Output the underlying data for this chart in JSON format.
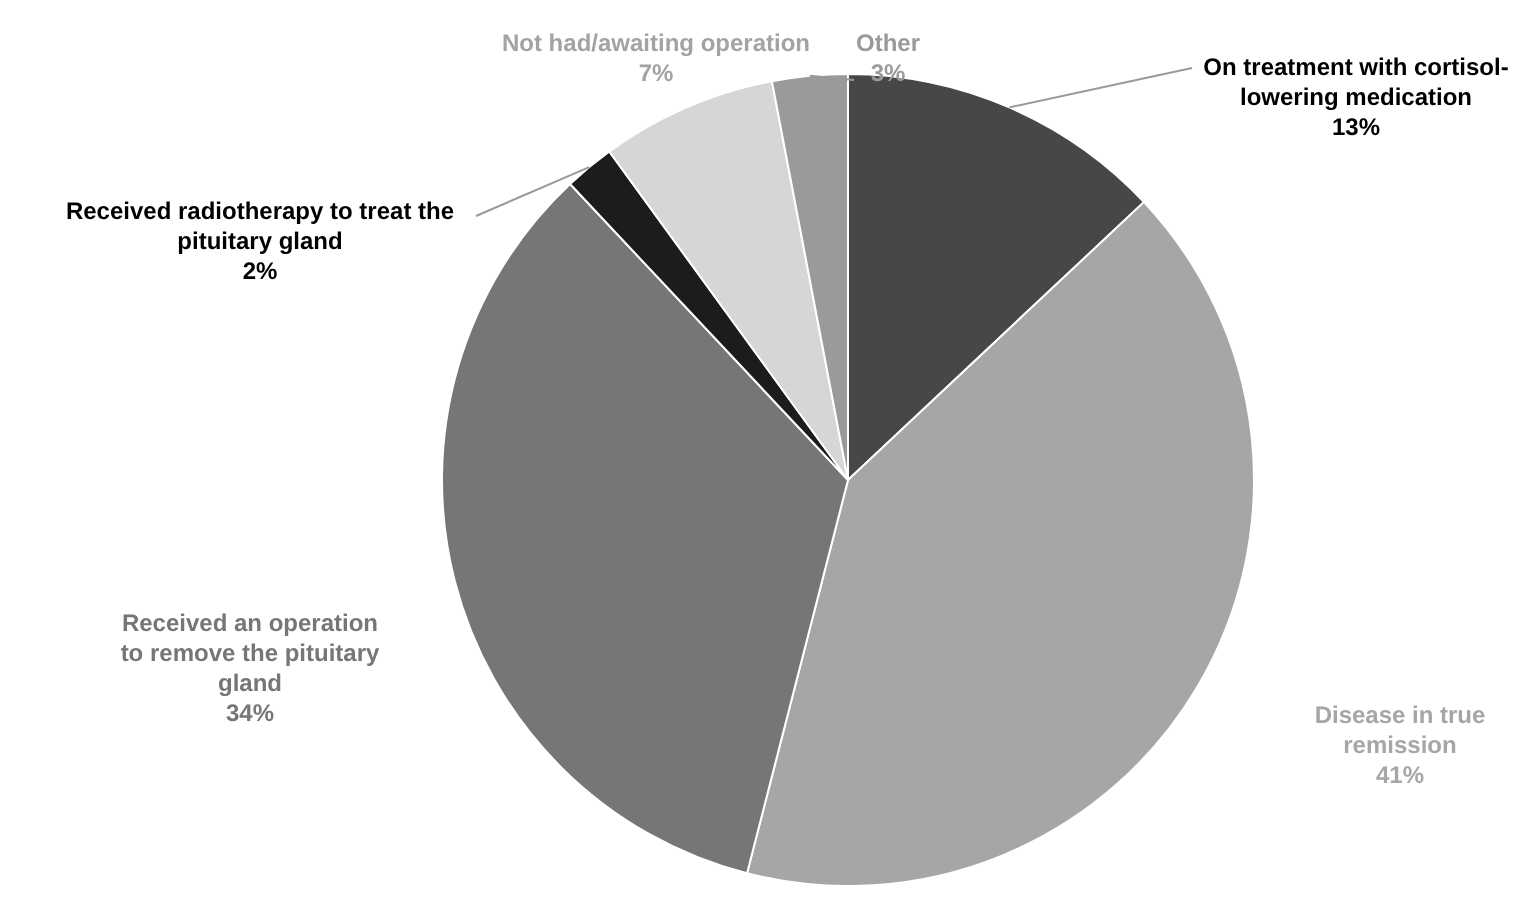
{
  "chart_data": {
    "type": "pie",
    "categories": [
      "On treatment with cortisol-lowering medication",
      "Disease in true remission",
      "Received an operation to remove the pituitary gland",
      "Received radiotherapy to treat the pituitary gland",
      "Not had/awaiting operation",
      "Other"
    ],
    "values": [
      13,
      41,
      34,
      2,
      7,
      3
    ],
    "value_labels": [
      "13%",
      "41%",
      "34%",
      "2%",
      "7%",
      "3%"
    ],
    "colors": [
      "#474747",
      "#a6a6a6",
      "#767676",
      "#1c1c1c",
      "#d6d6d6",
      "#9a9a9a"
    ]
  }
}
